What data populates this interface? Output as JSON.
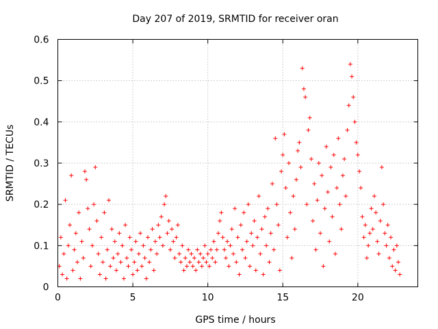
{
  "chart_data": {
    "type": "scatter",
    "title": "Day 207 of 2019, SRMTID for receiver oran",
    "xlabel": "GPS time / hours",
    "ylabel": "SRMTID / TECUs",
    "xlim": [
      0,
      24
    ],
    "ylim": [
      0,
      0.6
    ],
    "xticks": [
      0,
      5,
      10,
      15,
      20
    ],
    "xtick_labels": [
      "0",
      "5",
      "10",
      "15",
      "20"
    ],
    "yticks": [
      0,
      0.1,
      0.2,
      0.3,
      0.4,
      0.5,
      0.6
    ],
    "ytick_labels": [
      "0",
      "0.1",
      "0.2",
      "0.3",
      "0.4",
      "0.5",
      "0.6"
    ],
    "grid": true,
    "marker": "+",
    "series": [
      {
        "name": "SRMTID",
        "color": "#ff0000",
        "points": [
          [
            0.1,
            0.05
          ],
          [
            0.2,
            0.12
          ],
          [
            0.3,
            0.03
          ],
          [
            0.4,
            0.08
          ],
          [
            0.5,
            0.21
          ],
          [
            0.6,
            0.02
          ],
          [
            0.7,
            0.1
          ],
          [
            0.8,
            0.15
          ],
          [
            0.9,
            0.27
          ],
          [
            1.0,
            0.04
          ],
          [
            1.1,
            0.09
          ],
          [
            1.2,
            0.13
          ],
          [
            1.3,
            0.06
          ],
          [
            1.4,
            0.18
          ],
          [
            1.5,
            0.02
          ],
          [
            1.6,
            0.11
          ],
          [
            1.7,
            0.07
          ],
          [
            1.8,
            0.28
          ],
          [
            1.9,
            0.26
          ],
          [
            2.0,
            0.19
          ],
          [
            2.1,
            0.14
          ],
          [
            2.2,
            0.05
          ],
          [
            2.3,
            0.1
          ],
          [
            2.4,
            0.2
          ],
          [
            2.5,
            0.29
          ],
          [
            2.6,
            0.16
          ],
          [
            2.7,
            0.08
          ],
          [
            2.8,
            0.03
          ],
          [
            2.9,
            0.12
          ],
          [
            3.0,
            0.06
          ],
          [
            3.1,
            0.18
          ],
          [
            3.2,
            0.02
          ],
          [
            3.3,
            0.09
          ],
          [
            3.4,
            0.21
          ],
          [
            3.5,
            0.05
          ],
          [
            3.6,
            0.14
          ],
          [
            3.7,
            0.07
          ],
          [
            3.8,
            0.11
          ],
          [
            3.9,
            0.04
          ],
          [
            4.0,
            0.08
          ],
          [
            4.1,
            0.13
          ],
          [
            4.2,
            0.06
          ],
          [
            4.3,
            0.1
          ],
          [
            4.4,
            0.02
          ],
          [
            4.5,
            0.15
          ],
          [
            4.6,
            0.07
          ],
          [
            4.7,
            0.05
          ],
          [
            4.8,
            0.12
          ],
          [
            4.9,
            0.09
          ],
          [
            5.0,
            0.03
          ],
          [
            5.1,
            0.06
          ],
          [
            5.2,
            0.11
          ],
          [
            5.3,
            0.04
          ],
          [
            5.4,
            0.08
          ],
          [
            5.5,
            0.13
          ],
          [
            5.6,
            0.05
          ],
          [
            5.7,
            0.1
          ],
          [
            5.8,
            0.07
          ],
          [
            5.9,
            0.02
          ],
          [
            6.0,
            0.12
          ],
          [
            6.1,
            0.06
          ],
          [
            6.2,
            0.09
          ],
          [
            6.3,
            0.14
          ],
          [
            6.4,
            0.04
          ],
          [
            6.5,
            0.11
          ],
          [
            6.6,
            0.08
          ],
          [
            6.7,
            0.15
          ],
          [
            6.8,
            0.12
          ],
          [
            6.9,
            0.17
          ],
          [
            7.0,
            0.1
          ],
          [
            7.1,
            0.2
          ],
          [
            7.2,
            0.22
          ],
          [
            7.3,
            0.13
          ],
          [
            7.4,
            0.16
          ],
          [
            7.5,
            0.09
          ],
          [
            7.6,
            0.14
          ],
          [
            7.7,
            0.11
          ],
          [
            7.8,
            0.07
          ],
          [
            7.9,
            0.12
          ],
          [
            8.0,
            0.15
          ],
          [
            8.1,
            0.08
          ],
          [
            8.2,
            0.06
          ],
          [
            8.3,
            0.1
          ],
          [
            8.4,
            0.04
          ],
          [
            8.5,
            0.07
          ],
          [
            8.6,
            0.05
          ],
          [
            8.7,
            0.09
          ],
          [
            8.8,
            0.06
          ],
          [
            8.9,
            0.08
          ],
          [
            9.0,
            0.05
          ],
          [
            9.1,
            0.07
          ],
          [
            9.2,
            0.04
          ],
          [
            9.3,
            0.09
          ],
          [
            9.4,
            0.06
          ],
          [
            9.5,
            0.08
          ],
          [
            9.6,
            0.05
          ],
          [
            9.7,
            0.07
          ],
          [
            9.8,
            0.1
          ],
          [
            9.9,
            0.06
          ],
          [
            10.0,
            0.08
          ],
          [
            10.1,
            0.05
          ],
          [
            10.2,
            0.09
          ],
          [
            10.3,
            0.07
          ],
          [
            10.4,
            0.11
          ],
          [
            10.5,
            0.06
          ],
          [
            10.6,
            0.09
          ],
          [
            10.7,
            0.13
          ],
          [
            10.8,
            0.16
          ],
          [
            10.9,
            0.18
          ],
          [
            11.0,
            0.12
          ],
          [
            11.1,
            0.09
          ],
          [
            11.2,
            0.07
          ],
          [
            11.3,
            0.11
          ],
          [
            11.4,
            0.05
          ],
          [
            11.5,
            0.1
          ],
          [
            11.6,
            0.14
          ],
          [
            11.7,
            0.08
          ],
          [
            11.8,
            0.19
          ],
          [
            11.9,
            0.06
          ],
          [
            12.0,
            0.12
          ],
          [
            12.1,
            0.03
          ],
          [
            12.2,
            0.15
          ],
          [
            12.3,
            0.09
          ],
          [
            12.4,
            0.18
          ],
          [
            12.5,
            0.07
          ],
          [
            12.6,
            0.11
          ],
          [
            12.7,
            0.2
          ],
          [
            12.8,
            0.05
          ],
          [
            12.9,
            0.13
          ],
          [
            13.0,
            0.1
          ],
          [
            13.1,
            0.16
          ],
          [
            13.2,
            0.04
          ],
          [
            13.3,
            0.12
          ],
          [
            13.4,
            0.22
          ],
          [
            13.5,
            0.08
          ],
          [
            13.6,
            0.14
          ],
          [
            13.7,
            0.03
          ],
          [
            13.8,
            0.17
          ],
          [
            13.9,
            0.1
          ],
          [
            14.0,
            0.19
          ],
          [
            14.1,
            0.06
          ],
          [
            14.2,
            0.13
          ],
          [
            14.3,
            0.25
          ],
          [
            14.4,
            0.09
          ],
          [
            14.5,
            0.36
          ],
          [
            14.6,
            0.2
          ],
          [
            14.7,
            0.15
          ],
          [
            14.8,
            0.04
          ],
          [
            14.9,
            0.28
          ],
          [
            15.0,
            0.32
          ],
          [
            15.1,
            0.37
          ],
          [
            15.2,
            0.24
          ],
          [
            15.3,
            0.12
          ],
          [
            15.4,
            0.3
          ],
          [
            15.5,
            0.18
          ],
          [
            15.6,
            0.07
          ],
          [
            15.7,
            0.22
          ],
          [
            15.8,
            0.14
          ],
          [
            15.9,
            0.26
          ],
          [
            16.0,
            0.33
          ],
          [
            16.1,
            0.35
          ],
          [
            16.2,
            0.29
          ],
          [
            16.3,
            0.53
          ],
          [
            16.4,
            0.48
          ],
          [
            16.5,
            0.46
          ],
          [
            16.6,
            0.2
          ],
          [
            16.7,
            0.38
          ],
          [
            16.8,
            0.41
          ],
          [
            16.9,
            0.31
          ],
          [
            17.0,
            0.16
          ],
          [
            17.1,
            0.25
          ],
          [
            17.2,
            0.09
          ],
          [
            17.3,
            0.21
          ],
          [
            17.4,
            0.3
          ],
          [
            17.5,
            0.13
          ],
          [
            17.6,
            0.27
          ],
          [
            17.7,
            0.05
          ],
          [
            17.8,
            0.19
          ],
          [
            17.9,
            0.34
          ],
          [
            18.0,
            0.23
          ],
          [
            18.1,
            0.11
          ],
          [
            18.2,
            0.29
          ],
          [
            18.3,
            0.17
          ],
          [
            18.4,
            0.32
          ],
          [
            18.5,
            0.08
          ],
          [
            18.6,
            0.24
          ],
          [
            18.7,
            0.36
          ],
          [
            18.8,
            0.2
          ],
          [
            18.9,
            0.14
          ],
          [
            19.0,
            0.27
          ],
          [
            19.1,
            0.31
          ],
          [
            19.2,
            0.22
          ],
          [
            19.3,
            0.38
          ],
          [
            19.4,
            0.44
          ],
          [
            19.5,
            0.54
          ],
          [
            19.6,
            0.51
          ],
          [
            19.7,
            0.46
          ],
          [
            19.8,
            0.4
          ],
          [
            19.9,
            0.35
          ],
          [
            20.0,
            0.32
          ],
          [
            20.1,
            0.28
          ],
          [
            20.2,
            0.24
          ],
          [
            20.3,
            0.17
          ],
          [
            20.4,
            0.12
          ],
          [
            20.5,
            0.15
          ],
          [
            20.6,
            0.07
          ],
          [
            20.7,
            0.1
          ],
          [
            20.8,
            0.13
          ],
          [
            20.9,
            0.19
          ],
          [
            21.0,
            0.14
          ],
          [
            21.1,
            0.22
          ],
          [
            21.2,
            0.18
          ],
          [
            21.3,
            0.11
          ],
          [
            21.4,
            0.08
          ],
          [
            21.5,
            0.16
          ],
          [
            21.6,
            0.29
          ],
          [
            21.7,
            0.2
          ],
          [
            21.8,
            0.13
          ],
          [
            21.9,
            0.1
          ],
          [
            22.0,
            0.15
          ],
          [
            22.1,
            0.07
          ],
          [
            22.2,
            0.12
          ],
          [
            22.3,
            0.05
          ],
          [
            22.4,
            0.09
          ],
          [
            22.5,
            0.04
          ],
          [
            22.6,
            0.1
          ],
          [
            22.7,
            0.06
          ],
          [
            22.8,
            0.03
          ]
        ]
      }
    ]
  }
}
